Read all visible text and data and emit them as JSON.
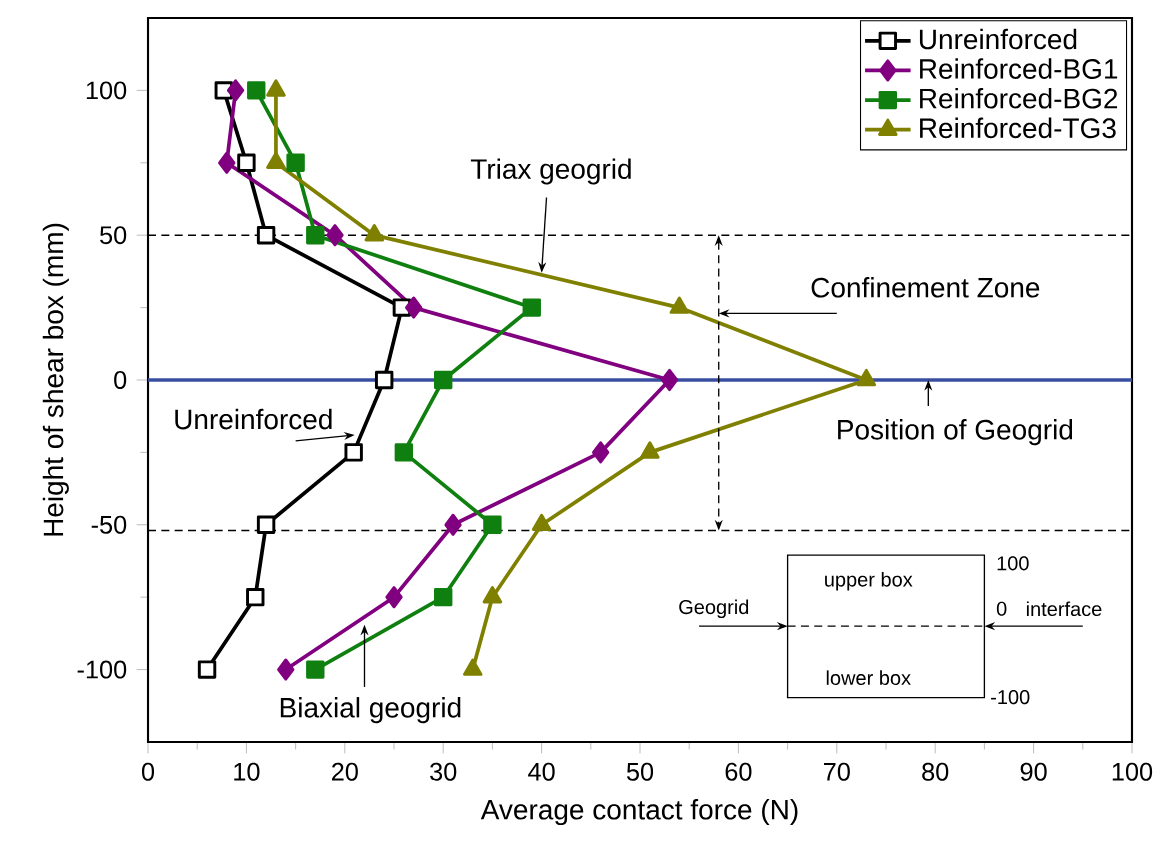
{
  "chart_data": {
    "type": "line",
    "xlabel": "Average contact force (N)",
    "ylabel": "Height of shear box (mm)",
    "xlim": [
      0,
      100
    ],
    "ylim": [
      -125,
      125
    ],
    "xticks": [
      0,
      10,
      20,
      30,
      40,
      50,
      60,
      70,
      80,
      90,
      100
    ],
    "yticks": [
      -100,
      -50,
      0,
      50,
      100
    ],
    "legend": "top right",
    "line_style": "solid",
    "series": [
      {
        "name": "Unreinforced",
        "color": "#000000",
        "marker": "square",
        "x": [
          7.7,
          10,
          12,
          25.8,
          24,
          20.9,
          12,
          10.9,
          6
        ],
        "values": [
          100,
          75,
          50,
          25,
          0,
          -25,
          -50,
          -75,
          -100
        ]
      },
      {
        "name": "Reinforced-BG1",
        "color": "#800080",
        "marker": "diamond",
        "x": [
          8.9,
          8,
          19,
          27,
          53,
          46,
          31,
          25,
          14
        ],
        "values": [
          100,
          75,
          50,
          25,
          0,
          -25,
          -50,
          -75,
          -100
        ]
      },
      {
        "name": "Reinforced-BG2",
        "color": "#0f800f",
        "marker": "square",
        "x": [
          11,
          15,
          17,
          39,
          30,
          26,
          35,
          30,
          17
        ],
        "values": [
          100,
          75,
          50,
          25,
          0,
          -25,
          -50,
          -75,
          -100
        ]
      },
      {
        "name": "Reinforced-TG3",
        "color": "#808000",
        "marker": "triangle",
        "x": [
          13,
          13,
          23,
          54,
          73,
          51,
          40,
          35,
          33
        ],
        "values": [
          100,
          75,
          50,
          25,
          0,
          -25,
          -50,
          -75,
          -100
        ]
      }
    ],
    "ref_lines": [
      {
        "axis": "y",
        "value": 50,
        "color": "#000000",
        "line_style": "dashed"
      },
      {
        "axis": "y",
        "value": -52,
        "color": "#000000",
        "line_style": "dashed"
      },
      {
        "axis": "y",
        "value": 0,
        "color": "#3a4ea0",
        "line_style": "solid"
      }
    ],
    "annotations": [
      {
        "text": "Triax geogrid",
        "x": 40,
        "y": 37
      },
      {
        "text": "Confinement Zone",
        "x": 58,
        "y": 23
      },
      {
        "text": "Position of Geogrid",
        "x": 79.3,
        "y": 0
      },
      {
        "text": "Unreinforced",
        "x": 21,
        "y": -19
      },
      {
        "text": "Biaxial geogrid",
        "x": 22,
        "y": -84.5
      },
      "Geogrid",
      "upper box",
      "lower box",
      "100",
      "0",
      "interface",
      "-100"
    ]
  }
}
